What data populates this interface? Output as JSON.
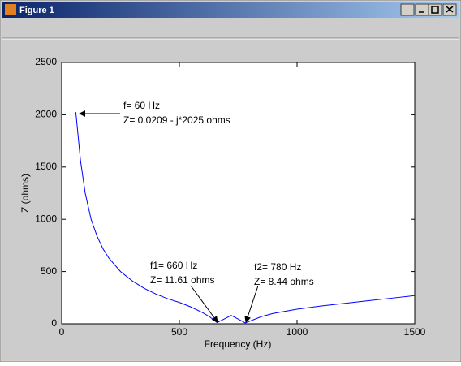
{
  "window": {
    "title": "Figure 1"
  },
  "chart_data": {
    "type": "line",
    "xlabel": "Frequency (Hz)",
    "ylabel": "Z (ohms)",
    "x": [
      60,
      80,
      100,
      125,
      150,
      175,
      200,
      250,
      300,
      350,
      400,
      450,
      500,
      550,
      600,
      630,
      660,
      690,
      720,
      750,
      780,
      850,
      900,
      1000,
      1100,
      1200,
      1300,
      1400,
      1500
    ],
    "series": [
      {
        "color": "#0000ff",
        "values": [
          2025,
          1560,
          1250,
          1000,
          840,
          720,
          630,
          500,
          410,
          340,
          285,
          240,
          205,
          160,
          105,
          65,
          11.61,
          45,
          80,
          45,
          8.44,
          70,
          100,
          140,
          170,
          195,
          220,
          245,
          270
        ]
      }
    ],
    "xlim": [
      0,
      1500
    ],
    "xticks": [
      0,
      500,
      1000,
      1500
    ],
    "ylim": [
      0,
      2500
    ],
    "yticks": [
      0,
      500,
      1000,
      1500,
      2000,
      2500
    ],
    "grid": false,
    "annotations": [
      [
        "f= 60 Hz",
        "Z= 0.0209 - j*2025 ohms"
      ],
      [
        "f1= 660 Hz",
        "Z= 11.61 ohms"
      ],
      [
        "f2= 780 Hz",
        "Z= 8.44 ohms"
      ]
    ]
  }
}
